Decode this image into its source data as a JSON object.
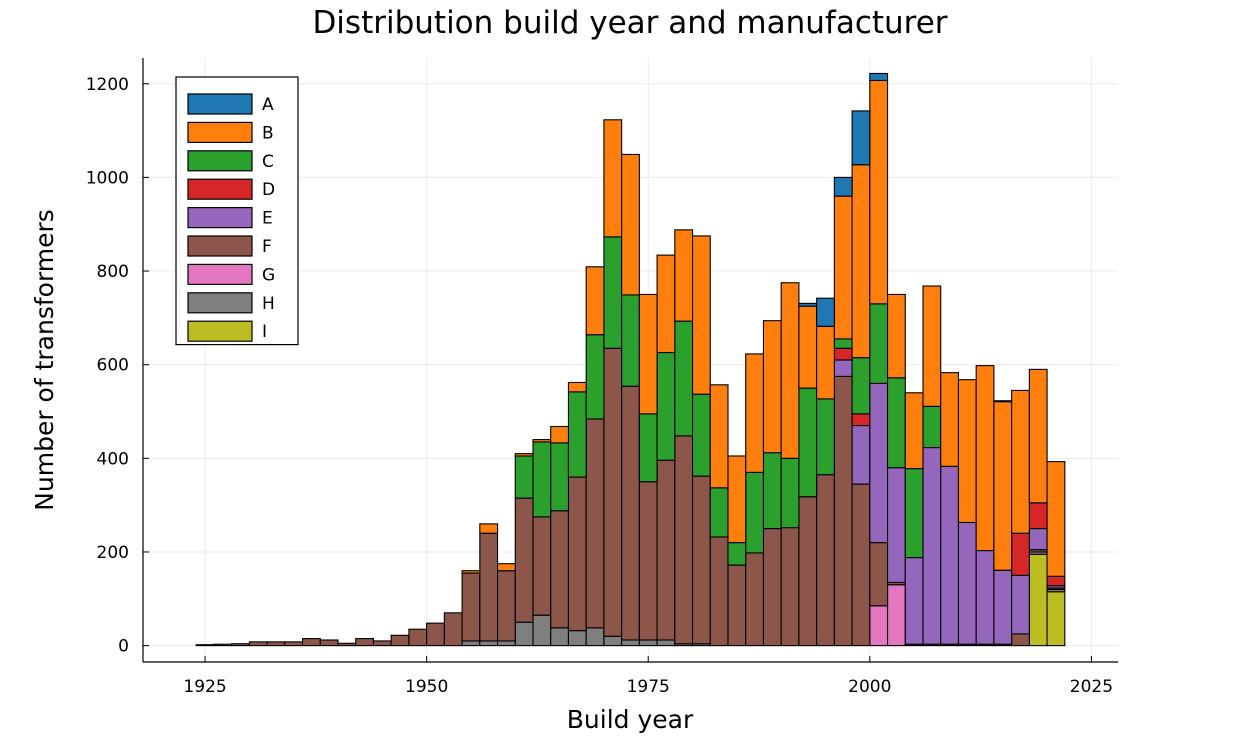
{
  "chart_data": {
    "type": "bar",
    "stacked": true,
    "title": "Distribution build year and manufacturer",
    "xlabel": "Build year",
    "ylabel": "Number of transformers",
    "xlim": [
      1918,
      2028
    ],
    "ylim": [
      -35,
      1255
    ],
    "xticks": [
      1925,
      1950,
      1975,
      2000,
      2025
    ],
    "yticks": [
      0,
      200,
      400,
      600,
      800,
      1000,
      1200
    ],
    "grid": true,
    "legend_position": "top-left",
    "bin_width": 2,
    "x": [
      1925,
      1927,
      1929,
      1931,
      1933,
      1935,
      1937,
      1939,
      1941,
      1943,
      1945,
      1947,
      1949,
      1951,
      1953,
      1955,
      1957,
      1959,
      1961,
      1963,
      1965,
      1967,
      1969,
      1971,
      1973,
      1975,
      1977,
      1979,
      1981,
      1983,
      1985,
      1987,
      1989,
      1991,
      1993,
      1995,
      1997,
      1999,
      2001,
      2003,
      2005,
      2007,
      2009,
      2011,
      2013,
      2015,
      2017,
      2019,
      2021
    ],
    "series": [
      {
        "name": "I",
        "color": "#bcbd22",
        "values": [
          0,
          0,
          0,
          0,
          0,
          0,
          0,
          0,
          0,
          0,
          0,
          0,
          0,
          0,
          0,
          0,
          0,
          0,
          0,
          0,
          0,
          0,
          0,
          0,
          0,
          0,
          0,
          0,
          0,
          0,
          0,
          0,
          0,
          0,
          0,
          0,
          0,
          0,
          0,
          0,
          0,
          0,
          0,
          0,
          0,
          0,
          0,
          195,
          115
        ]
      },
      {
        "name": "H",
        "color": "#7f7f7f",
        "values": [
          0,
          0,
          0,
          0,
          0,
          0,
          0,
          0,
          0,
          0,
          0,
          0,
          0,
          0,
          0,
          10,
          10,
          10,
          50,
          65,
          38,
          32,
          38,
          20,
          12,
          12,
          12,
          4,
          4,
          0,
          0,
          0,
          0,
          0,
          0,
          0,
          0,
          0,
          0,
          0,
          0,
          0,
          0,
          0,
          0,
          0,
          0,
          5,
          5
        ]
      },
      {
        "name": "G",
        "color": "#e377c2",
        "values": [
          0,
          0,
          0,
          0,
          0,
          0,
          0,
          0,
          0,
          0,
          0,
          0,
          0,
          0,
          0,
          0,
          0,
          0,
          0,
          0,
          0,
          0,
          0,
          0,
          0,
          0,
          0,
          0,
          0,
          0,
          0,
          0,
          0,
          0,
          0,
          0,
          0,
          0,
          85,
          130,
          0,
          0,
          0,
          0,
          0,
          0,
          0,
          0,
          0
        ]
      },
      {
        "name": "F",
        "color": "#8c564b",
        "values": [
          2,
          3,
          4,
          8,
          8,
          8,
          15,
          12,
          5,
          15,
          10,
          22,
          35,
          48,
          70,
          145,
          230,
          150,
          265,
          210,
          250,
          328,
          446,
          615,
          542,
          338,
          384,
          444,
          358,
          232,
          172,
          198,
          250,
          252,
          318,
          365,
          575,
          345,
          135,
          5,
          3,
          3,
          3,
          3,
          3,
          3,
          25,
          5,
          3
        ]
      },
      {
        "name": "E",
        "color": "#9467bd",
        "values": [
          0,
          0,
          0,
          0,
          0,
          0,
          0,
          0,
          0,
          0,
          0,
          0,
          0,
          0,
          0,
          0,
          0,
          0,
          0,
          0,
          0,
          0,
          0,
          0,
          0,
          0,
          0,
          0,
          0,
          0,
          0,
          0,
          0,
          0,
          0,
          0,
          35,
          125,
          340,
          245,
          185,
          420,
          380,
          260,
          200,
          158,
          125,
          45,
          5
        ]
      },
      {
        "name": "D",
        "color": "#d62728",
        "values": [
          0,
          0,
          0,
          0,
          0,
          0,
          0,
          0,
          0,
          0,
          0,
          0,
          0,
          0,
          0,
          0,
          0,
          0,
          0,
          0,
          0,
          0,
          0,
          0,
          0,
          0,
          0,
          0,
          0,
          0,
          0,
          0,
          0,
          0,
          0,
          0,
          25,
          25,
          0,
          0,
          0,
          0,
          0,
          0,
          0,
          0,
          90,
          55,
          20
        ]
      },
      {
        "name": "C",
        "color": "#2ca02c",
        "values": [
          0,
          0,
          0,
          0,
          0,
          0,
          0,
          0,
          0,
          0,
          0,
          0,
          0,
          0,
          0,
          0,
          0,
          0,
          90,
          160,
          145,
          182,
          180,
          238,
          195,
          145,
          230,
          245,
          175,
          105,
          48,
          172,
          162,
          148,
          232,
          162,
          20,
          120,
          170,
          192,
          190,
          88,
          0,
          0,
          0,
          0,
          0,
          0,
          0
        ]
      },
      {
        "name": "B",
        "color": "#ff7f0e",
        "values": [
          0,
          0,
          0,
          0,
          0,
          0,
          0,
          0,
          0,
          0,
          0,
          0,
          0,
          0,
          0,
          5,
          20,
          15,
          5,
          5,
          35,
          20,
          145,
          250,
          300,
          255,
          208,
          195,
          338,
          220,
          185,
          253,
          282,
          375,
          175,
          155,
          305,
          412,
          477,
          178,
          162,
          257,
          200,
          305,
          395,
          360,
          305,
          285,
          245
        ]
      },
      {
        "name": "A",
        "color": "#1f77b4",
        "values": [
          0,
          0,
          0,
          0,
          0,
          0,
          0,
          0,
          0,
          0,
          0,
          0,
          0,
          0,
          0,
          0,
          0,
          0,
          0,
          0,
          0,
          0,
          0,
          0,
          0,
          0,
          0,
          0,
          0,
          0,
          0,
          0,
          0,
          0,
          6,
          60,
          40,
          115,
          15,
          0,
          0,
          0,
          0,
          0,
          0,
          2,
          0,
          0,
          0
        ]
      }
    ],
    "legend_order": [
      "A",
      "B",
      "C",
      "D",
      "E",
      "F",
      "G",
      "H",
      "I"
    ]
  },
  "style": {
    "edge_color": "#000000",
    "grid_color": "#ebebeb",
    "background": "#ffffff"
  }
}
